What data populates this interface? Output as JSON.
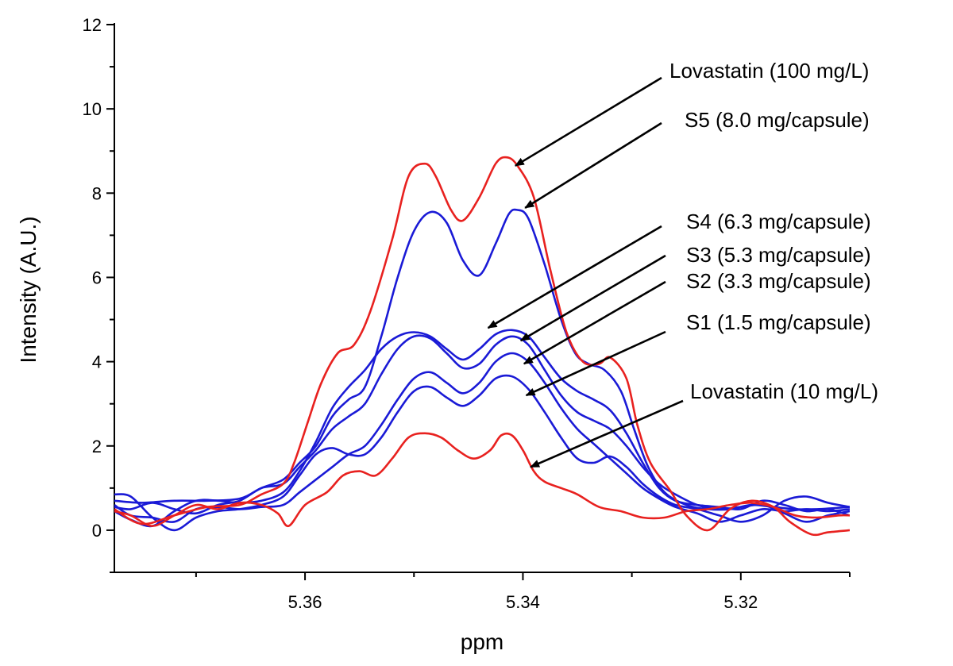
{
  "chart_data": {
    "type": "line",
    "title": "",
    "xlabel": "ppm",
    "ylabel": "Intensity (A.U.)",
    "xlim": [
      5.3775,
      5.31
    ],
    "ylim": [
      -1,
      12
    ],
    "x_ticks": [
      5.36,
      5.34,
      5.32
    ],
    "x_tick_labels": [
      "5.36",
      "5.34",
      "5.32"
    ],
    "y_ticks": [
      0,
      2,
      4,
      6,
      8,
      10,
      12
    ],
    "y_tick_labels": [
      "0",
      "2",
      "4",
      "6",
      "8",
      "10",
      "12"
    ],
    "colors": {
      "reference": "#e8211f",
      "sample": "#1a1ad6",
      "axis": "#000000"
    },
    "series": [
      {
        "name": "Lovastatin (100 mg/L)",
        "color": "#e8211f",
        "points": [
          [
            5.3775,
            0.5
          ],
          [
            5.375,
            0.15
          ],
          [
            5.372,
            0.35
          ],
          [
            5.369,
            0.55
          ],
          [
            5.366,
            0.6
          ],
          [
            5.364,
            0.85
          ],
          [
            5.362,
            1.1
          ],
          [
            5.361,
            1.6
          ],
          [
            5.3597,
            2.6
          ],
          [
            5.3585,
            3.5
          ],
          [
            5.357,
            4.2
          ],
          [
            5.3555,
            4.4
          ],
          [
            5.354,
            5.2
          ],
          [
            5.352,
            6.9
          ],
          [
            5.3505,
            8.4
          ],
          [
            5.349,
            8.7
          ],
          [
            5.348,
            8.4
          ],
          [
            5.3466,
            7.6
          ],
          [
            5.3455,
            7.35
          ],
          [
            5.344,
            7.9
          ],
          [
            5.3425,
            8.7
          ],
          [
            5.3415,
            8.85
          ],
          [
            5.3405,
            8.65
          ],
          [
            5.339,
            7.9
          ],
          [
            5.3375,
            6.2
          ],
          [
            5.336,
            4.7
          ],
          [
            5.3345,
            4.0
          ],
          [
            5.333,
            3.95
          ],
          [
            5.332,
            4.1
          ],
          [
            5.3305,
            3.6
          ],
          [
            5.3295,
            2.5
          ],
          [
            5.3283,
            1.6
          ],
          [
            5.3265,
            0.95
          ],
          [
            5.325,
            0.35
          ],
          [
            5.323,
            0.0
          ],
          [
            5.321,
            0.5
          ],
          [
            5.319,
            0.7
          ],
          [
            5.317,
            0.55
          ],
          [
            5.3155,
            0.2
          ],
          [
            5.3135,
            -0.1
          ],
          [
            5.312,
            -0.05
          ],
          [
            5.31,
            0.0
          ]
        ]
      },
      {
        "name": "S5 (8.0 mg/capsule)",
        "color": "#1a1ad6",
        "points": [
          [
            5.3775,
            0.7
          ],
          [
            5.375,
            0.65
          ],
          [
            5.372,
            0.7
          ],
          [
            5.369,
            0.7
          ],
          [
            5.366,
            0.75
          ],
          [
            5.364,
            1.0
          ],
          [
            5.362,
            1.2
          ],
          [
            5.3605,
            1.6
          ],
          [
            5.359,
            2.0
          ],
          [
            5.3575,
            2.7
          ],
          [
            5.356,
            3.1
          ],
          [
            5.3545,
            3.4
          ],
          [
            5.353,
            4.6
          ],
          [
            5.3515,
            6.0
          ],
          [
            5.35,
            7.1
          ],
          [
            5.3485,
            7.55
          ],
          [
            5.347,
            7.3
          ],
          [
            5.3455,
            6.4
          ],
          [
            5.344,
            6.05
          ],
          [
            5.3425,
            6.8
          ],
          [
            5.3413,
            7.5
          ],
          [
            5.3405,
            7.6
          ],
          [
            5.3395,
            7.4
          ],
          [
            5.338,
            6.3
          ],
          [
            5.3365,
            5.0
          ],
          [
            5.3352,
            4.2
          ],
          [
            5.334,
            3.95
          ],
          [
            5.3325,
            3.8
          ],
          [
            5.331,
            3.3
          ],
          [
            5.3298,
            2.4
          ],
          [
            5.3285,
            1.5
          ],
          [
            5.327,
            0.9
          ],
          [
            5.325,
            0.6
          ],
          [
            5.323,
            0.5
          ],
          [
            5.321,
            0.5
          ],
          [
            5.319,
            0.6
          ],
          [
            5.317,
            0.55
          ],
          [
            5.315,
            0.5
          ],
          [
            5.313,
            0.5
          ],
          [
            5.31,
            0.55
          ]
        ]
      },
      {
        "name": "S4 (6.3 mg/capsule)",
        "color": "#1a1ad6",
        "points": [
          [
            5.3775,
            0.45
          ],
          [
            5.376,
            0.25
          ],
          [
            5.374,
            0.1
          ],
          [
            5.372,
            0.45
          ],
          [
            5.37,
            0.7
          ],
          [
            5.368,
            0.7
          ],
          [
            5.366,
            0.65
          ],
          [
            5.364,
            0.7
          ],
          [
            5.362,
            0.9
          ],
          [
            5.3605,
            1.4
          ],
          [
            5.359,
            2.1
          ],
          [
            5.3575,
            2.9
          ],
          [
            5.356,
            3.4
          ],
          [
            5.3545,
            3.8
          ],
          [
            5.353,
            4.3
          ],
          [
            5.3515,
            4.6
          ],
          [
            5.35,
            4.7
          ],
          [
            5.3485,
            4.6
          ],
          [
            5.347,
            4.3
          ],
          [
            5.3455,
            4.05
          ],
          [
            5.344,
            4.3
          ],
          [
            5.3425,
            4.65
          ],
          [
            5.341,
            4.75
          ],
          [
            5.3395,
            4.6
          ],
          [
            5.338,
            4.1
          ],
          [
            5.3365,
            3.6
          ],
          [
            5.335,
            3.3
          ],
          [
            5.3335,
            3.1
          ],
          [
            5.332,
            2.85
          ],
          [
            5.3305,
            2.3
          ],
          [
            5.329,
            1.6
          ],
          [
            5.3275,
            1.0
          ],
          [
            5.326,
            0.7
          ],
          [
            5.324,
            0.6
          ],
          [
            5.322,
            0.55
          ],
          [
            5.32,
            0.5
          ],
          [
            5.318,
            0.7
          ],
          [
            5.316,
            0.6
          ],
          [
            5.314,
            0.45
          ],
          [
            5.312,
            0.5
          ],
          [
            5.31,
            0.35
          ]
        ]
      },
      {
        "name": "S3 (5.3 mg/capsule)",
        "color": "#1a1ad6",
        "points": [
          [
            5.3775,
            0.55
          ],
          [
            5.376,
            0.5
          ],
          [
            5.374,
            0.65
          ],
          [
            5.372,
            0.5
          ],
          [
            5.37,
            0.4
          ],
          [
            5.368,
            0.6
          ],
          [
            5.366,
            0.7
          ],
          [
            5.364,
            1.0
          ],
          [
            5.362,
            1.1
          ],
          [
            5.3605,
            1.5
          ],
          [
            5.359,
            1.9
          ],
          [
            5.3575,
            2.4
          ],
          [
            5.356,
            2.7
          ],
          [
            5.3545,
            3.0
          ],
          [
            5.353,
            3.7
          ],
          [
            5.3515,
            4.3
          ],
          [
            5.35,
            4.6
          ],
          [
            5.3485,
            4.55
          ],
          [
            5.347,
            4.2
          ],
          [
            5.3455,
            3.85
          ],
          [
            5.344,
            3.95
          ],
          [
            5.3425,
            4.4
          ],
          [
            5.341,
            4.6
          ],
          [
            5.3395,
            4.4
          ],
          [
            5.338,
            3.8
          ],
          [
            5.3365,
            3.2
          ],
          [
            5.335,
            2.8
          ],
          [
            5.3335,
            2.6
          ],
          [
            5.332,
            2.4
          ],
          [
            5.3305,
            2.0
          ],
          [
            5.329,
            1.5
          ],
          [
            5.3275,
            1.1
          ],
          [
            5.326,
            0.85
          ],
          [
            5.324,
            0.6
          ],
          [
            5.322,
            0.5
          ],
          [
            5.32,
            0.55
          ],
          [
            5.318,
            0.6
          ],
          [
            5.316,
            0.4
          ],
          [
            5.314,
            0.2
          ],
          [
            5.312,
            0.35
          ],
          [
            5.31,
            0.45
          ]
        ]
      },
      {
        "name": "S2 (3.3 mg/capsule)",
        "color": "#1a1ad6",
        "points": [
          [
            5.3775,
            0.6
          ],
          [
            5.376,
            0.35
          ],
          [
            5.374,
            0.3
          ],
          [
            5.372,
            0.2
          ],
          [
            5.37,
            0.5
          ],
          [
            5.368,
            0.55
          ],
          [
            5.366,
            0.5
          ],
          [
            5.364,
            0.55
          ],
          [
            5.362,
            0.6
          ],
          [
            5.3605,
            0.9
          ],
          [
            5.359,
            1.2
          ],
          [
            5.3575,
            1.5
          ],
          [
            5.356,
            1.8
          ],
          [
            5.3545,
            2.0
          ],
          [
            5.353,
            2.5
          ],
          [
            5.3515,
            3.1
          ],
          [
            5.35,
            3.6
          ],
          [
            5.3485,
            3.75
          ],
          [
            5.347,
            3.5
          ],
          [
            5.3455,
            3.25
          ],
          [
            5.344,
            3.5
          ],
          [
            5.3425,
            4.0
          ],
          [
            5.341,
            4.2
          ],
          [
            5.3395,
            4.0
          ],
          [
            5.338,
            3.5
          ],
          [
            5.3365,
            2.9
          ],
          [
            5.335,
            2.4
          ],
          [
            5.3335,
            2.05
          ],
          [
            5.332,
            1.7
          ],
          [
            5.3305,
            1.35
          ],
          [
            5.329,
            1.0
          ],
          [
            5.3275,
            0.75
          ],
          [
            5.326,
            0.55
          ],
          [
            5.324,
            0.4
          ],
          [
            5.322,
            0.2
          ],
          [
            5.32,
            0.35
          ],
          [
            5.318,
            0.5
          ],
          [
            5.316,
            0.45
          ],
          [
            5.314,
            0.5
          ],
          [
            5.312,
            0.45
          ],
          [
            5.31,
            0.5
          ]
        ]
      },
      {
        "name": "S1 (1.5 mg/capsule)",
        "color": "#1a1ad6",
        "points": [
          [
            5.3775,
            0.85
          ],
          [
            5.376,
            0.8
          ],
          [
            5.374,
            0.3
          ],
          [
            5.372,
            0.0
          ],
          [
            5.37,
            0.3
          ],
          [
            5.368,
            0.45
          ],
          [
            5.366,
            0.5
          ],
          [
            5.364,
            0.6
          ],
          [
            5.362,
            0.8
          ],
          [
            5.3605,
            1.3
          ],
          [
            5.359,
            1.8
          ],
          [
            5.3575,
            1.95
          ],
          [
            5.356,
            1.8
          ],
          [
            5.3545,
            1.8
          ],
          [
            5.353,
            2.2
          ],
          [
            5.3515,
            2.8
          ],
          [
            5.35,
            3.3
          ],
          [
            5.3485,
            3.4
          ],
          [
            5.347,
            3.15
          ],
          [
            5.3455,
            2.95
          ],
          [
            5.344,
            3.2
          ],
          [
            5.3425,
            3.6
          ],
          [
            5.341,
            3.65
          ],
          [
            5.3395,
            3.35
          ],
          [
            5.338,
            2.8
          ],
          [
            5.3365,
            2.2
          ],
          [
            5.335,
            1.7
          ],
          [
            5.3335,
            1.6
          ],
          [
            5.332,
            1.75
          ],
          [
            5.3305,
            1.5
          ],
          [
            5.329,
            1.1
          ],
          [
            5.3275,
            0.8
          ],
          [
            5.326,
            0.6
          ],
          [
            5.324,
            0.5
          ],
          [
            5.322,
            0.35
          ],
          [
            5.32,
            0.2
          ],
          [
            5.318,
            0.35
          ],
          [
            5.316,
            0.7
          ],
          [
            5.314,
            0.8
          ],
          [
            5.312,
            0.65
          ],
          [
            5.31,
            0.55
          ]
        ]
      },
      {
        "name": "Lovastatin (10 mg/L)",
        "color": "#e8211f",
        "points": [
          [
            5.3775,
            0.45
          ],
          [
            5.376,
            0.35
          ],
          [
            5.374,
            0.1
          ],
          [
            5.372,
            0.35
          ],
          [
            5.37,
            0.6
          ],
          [
            5.368,
            0.5
          ],
          [
            5.366,
            0.65
          ],
          [
            5.364,
            0.6
          ],
          [
            5.3625,
            0.4
          ],
          [
            5.3615,
            0.1
          ],
          [
            5.36,
            0.6
          ],
          [
            5.358,
            0.9
          ],
          [
            5.3565,
            1.3
          ],
          [
            5.355,
            1.4
          ],
          [
            5.3535,
            1.3
          ],
          [
            5.352,
            1.7
          ],
          [
            5.3505,
            2.2
          ],
          [
            5.349,
            2.3
          ],
          [
            5.3475,
            2.2
          ],
          [
            5.346,
            1.9
          ],
          [
            5.3445,
            1.7
          ],
          [
            5.343,
            1.9
          ],
          [
            5.342,
            2.25
          ],
          [
            5.341,
            2.25
          ],
          [
            5.34,
            1.9
          ],
          [
            5.339,
            1.4
          ],
          [
            5.338,
            1.15
          ],
          [
            5.3365,
            1.0
          ],
          [
            5.335,
            0.85
          ],
          [
            5.333,
            0.55
          ],
          [
            5.331,
            0.45
          ],
          [
            5.329,
            0.3
          ],
          [
            5.327,
            0.3
          ],
          [
            5.325,
            0.45
          ],
          [
            5.323,
            0.5
          ],
          [
            5.321,
            0.6
          ],
          [
            5.319,
            0.65
          ],
          [
            5.317,
            0.55
          ],
          [
            5.315,
            0.35
          ],
          [
            5.313,
            0.3
          ],
          [
            5.311,
            0.35
          ],
          [
            5.31,
            0.35
          ]
        ]
      }
    ],
    "annotations": [
      {
        "text": "Lovastatin (100 mg/L)",
        "target": [
          5.3407,
          8.65
        ]
      },
      {
        "text": "S5 (8.0 mg/capsule)",
        "target": [
          5.3398,
          7.65
        ]
      },
      {
        "text": "S4 (6.3 mg/capsule)",
        "target": [
          5.3432,
          4.8
        ]
      },
      {
        "text": "S3 (5.3 mg/capsule)",
        "target": [
          5.3402,
          4.5
        ]
      },
      {
        "text": "S2 (3.3 mg/capsule)",
        "target": [
          5.3399,
          3.95
        ]
      },
      {
        "text": "S1 (1.5 mg/capsule)",
        "target": [
          5.3397,
          3.2
        ]
      },
      {
        "text": "Lovastatin (10 mg/L)",
        "target": [
          5.3393,
          1.5
        ]
      }
    ]
  }
}
